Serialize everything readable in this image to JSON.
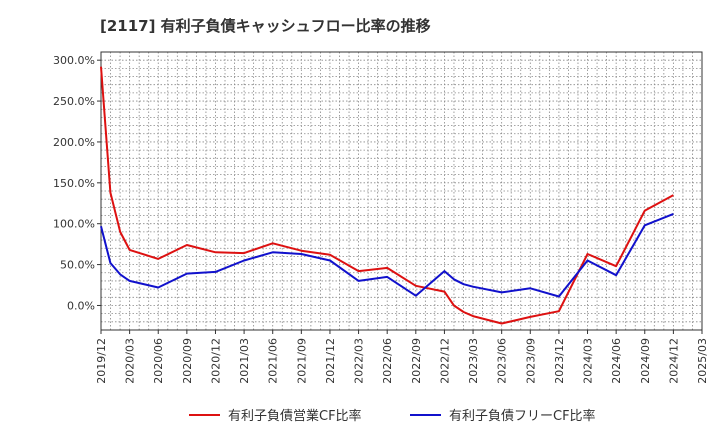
{
  "chart_data": {
    "type": "line",
    "title": "[2117]  有利子負債キャッシュフロー比率の推移",
    "xlabel": "",
    "ylabel": "",
    "ylim": [
      -30,
      310
    ],
    "y_ticks": [
      0,
      50,
      100,
      150,
      200,
      250,
      300
    ],
    "y_tick_labels": [
      "0.0%",
      "50.0%",
      "100.0%",
      "150.0%",
      "200.0%",
      "250.0%",
      "300.0%"
    ],
    "x_tick_labels": [
      "2019/12",
      "2020/03",
      "2020/06",
      "2020/09",
      "2020/12",
      "2021/03",
      "2021/06",
      "2021/09",
      "2021/12",
      "2022/03",
      "2022/06",
      "2022/09",
      "2022/12",
      "2023/03",
      "2023/06",
      "2023/09",
      "2023/12",
      "2024/03",
      "2024/06",
      "2024/09",
      "2024/12",
      "2025/03"
    ],
    "grid": true,
    "legend_position": "bottom",
    "series": [
      {
        "name": "有利子負債営業CF比率",
        "color": "#dd1111",
        "x": [
          0,
          0.33,
          0.67,
          1,
          2,
          3,
          4,
          5,
          6,
          7,
          8,
          9,
          10,
          11,
          12,
          12.33,
          12.67,
          13,
          14,
          15,
          16,
          17,
          18,
          19,
          20
        ],
        "values": [
          292,
          138,
          90,
          68,
          57,
          74,
          65,
          64,
          76,
          67,
          62,
          42,
          46,
          24,
          17,
          0,
          -8,
          -13,
          -22,
          -14,
          -7,
          63,
          48,
          116,
          135
        ]
      },
      {
        "name": "有利子負債フリーCF比率",
        "color": "#1111cc",
        "x": [
          0,
          0.33,
          0.67,
          1,
          2,
          3,
          4,
          5,
          6,
          7,
          8,
          9,
          10,
          11,
          12,
          12.33,
          12.67,
          13,
          14,
          15,
          16,
          17,
          18,
          19,
          20
        ],
        "values": [
          97,
          52,
          38,
          30,
          22,
          39,
          41,
          55,
          65,
          63,
          55,
          30,
          35,
          12,
          42,
          32,
          26,
          23,
          16,
          21,
          11,
          55,
          37,
          98,
          112
        ]
      }
    ]
  }
}
